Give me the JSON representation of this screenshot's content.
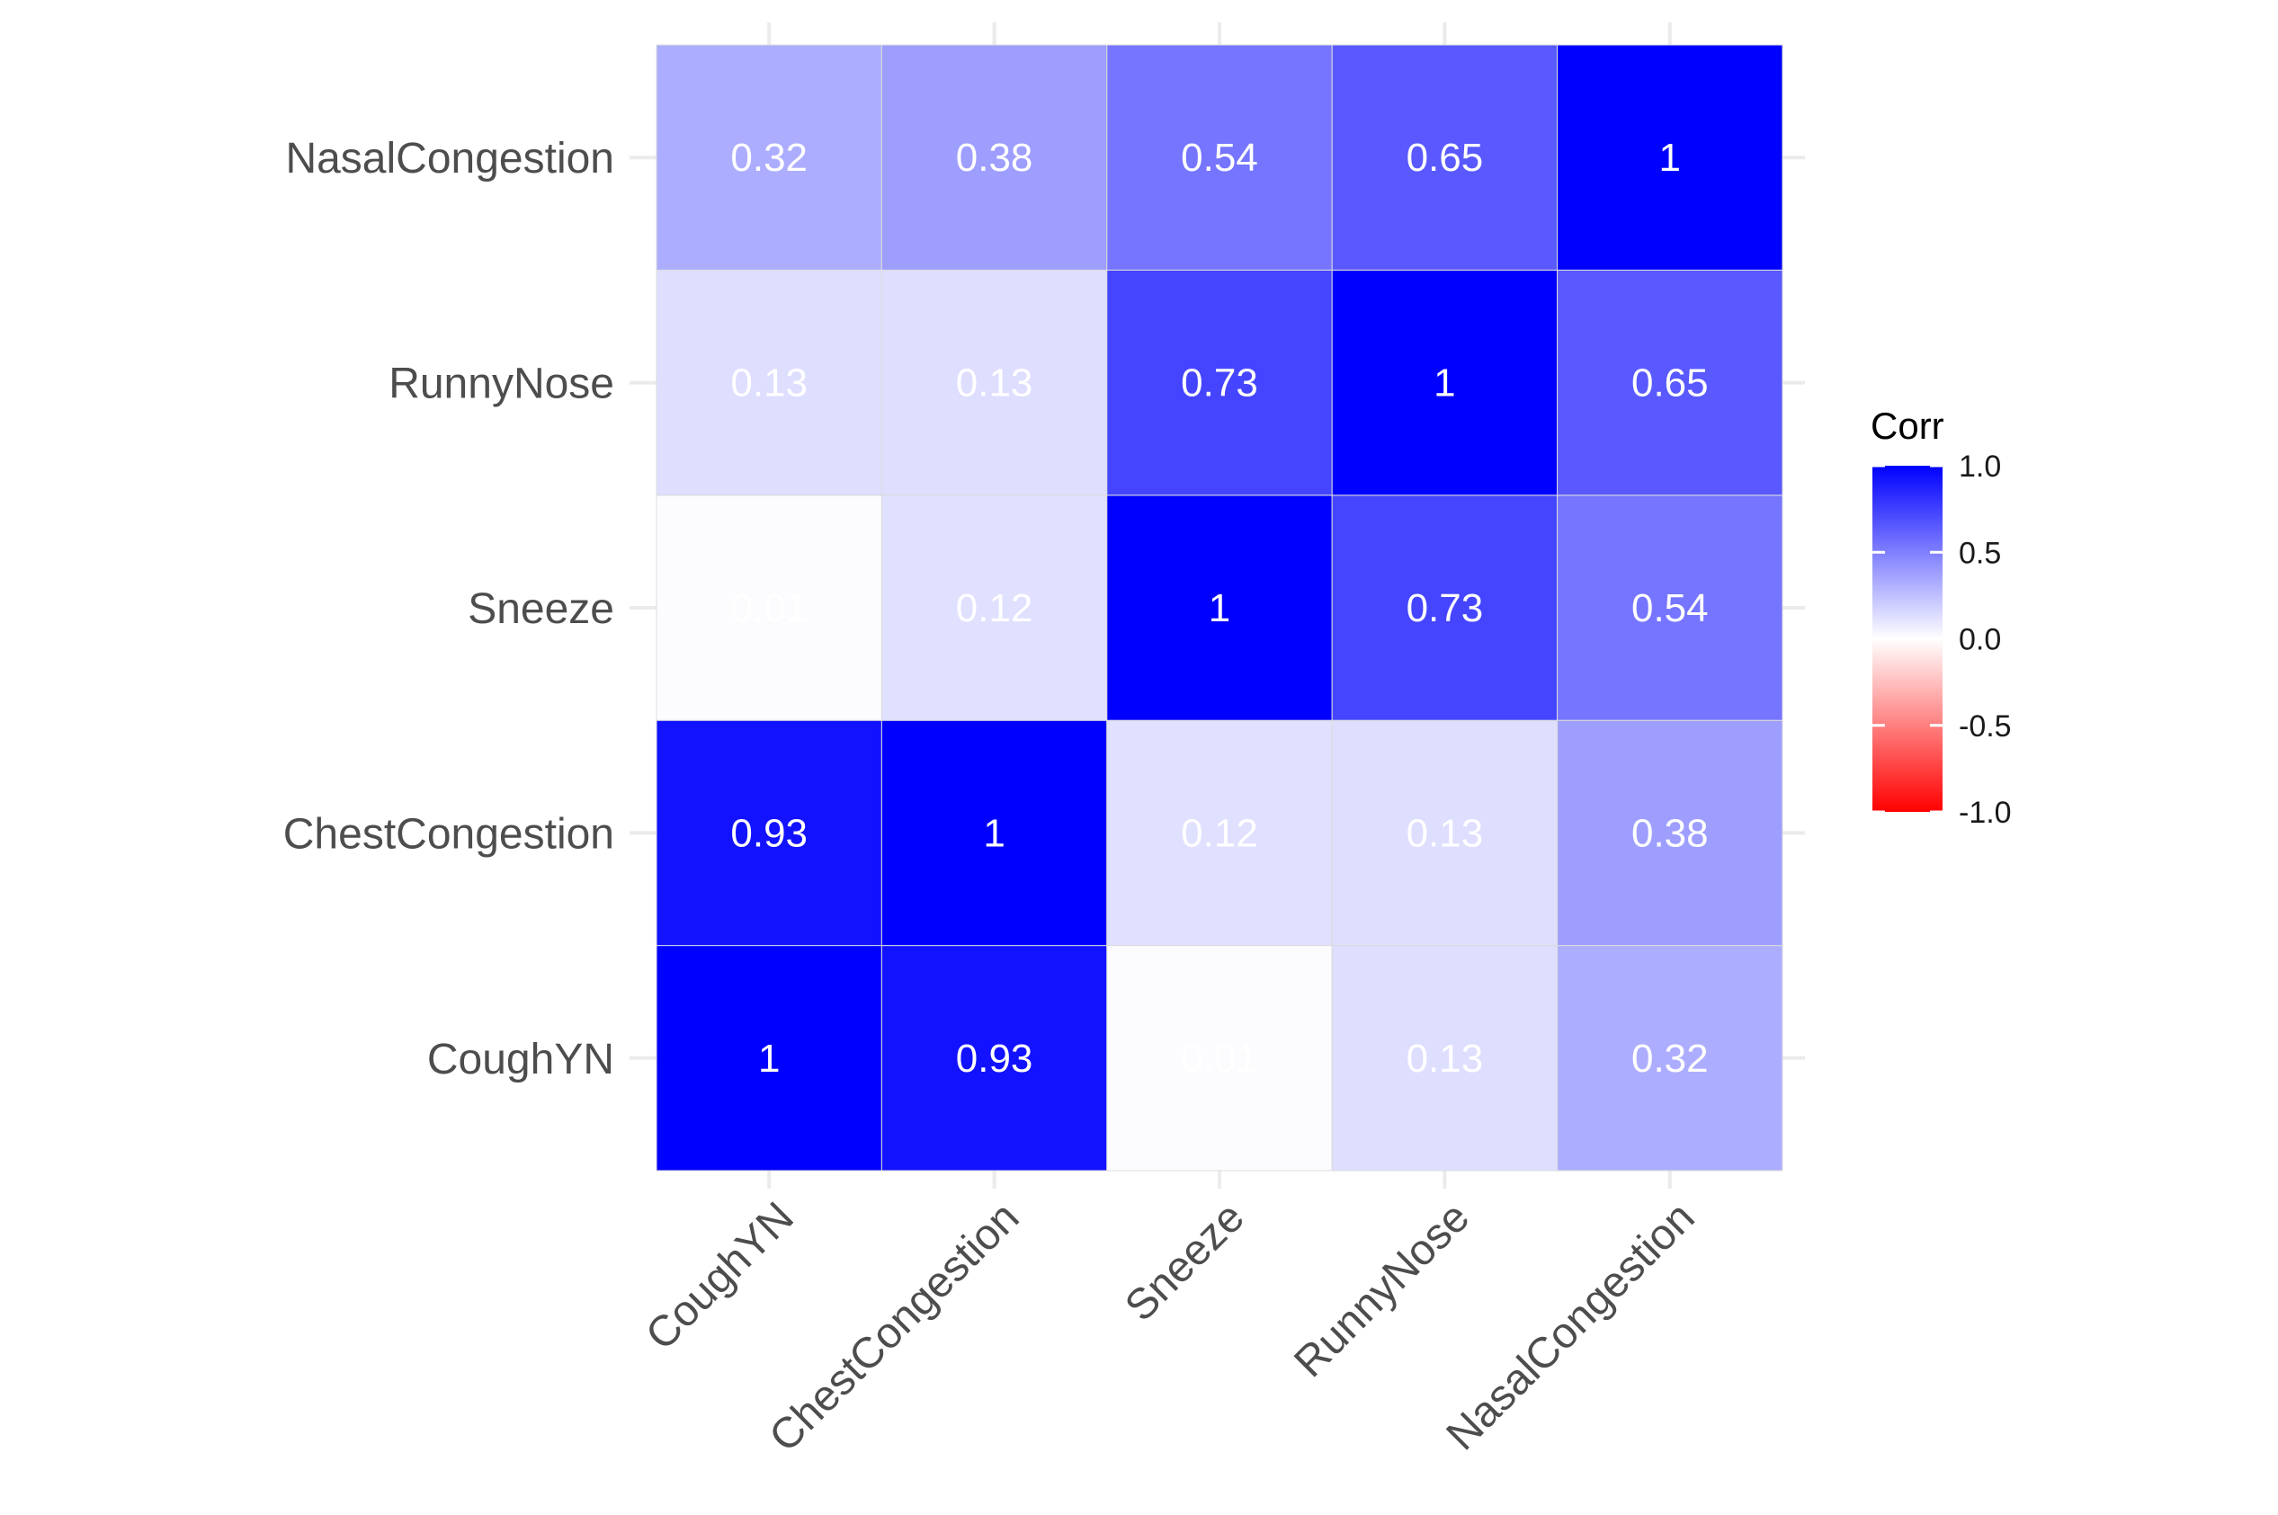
{
  "chart_data": {
    "type": "heatmap",
    "title": "",
    "xlabel": "",
    "ylabel": "",
    "x_categories": [
      "CoughYN",
      "ChestCongestion",
      "Sneeze",
      "RunnyNose",
      "NasalCongestion"
    ],
    "y_categories": [
      "CoughYN",
      "ChestCongestion",
      "Sneeze",
      "RunnyNose",
      "NasalCongestion"
    ],
    "matrix": [
      [
        1,
        0.93,
        0.01,
        0.13,
        0.32
      ],
      [
        0.93,
        1,
        0.12,
        0.13,
        0.38
      ],
      [
        0.01,
        0.12,
        1,
        0.73,
        0.54
      ],
      [
        0.13,
        0.13,
        0.73,
        1,
        0.65
      ],
      [
        0.32,
        0.38,
        0.54,
        0.65,
        1
      ]
    ],
    "cell_labels": [
      [
        "1",
        "0.93",
        "0.01",
        "0.13",
        "0.32"
      ],
      [
        "0.93",
        "1",
        "0.12",
        "0.13",
        "0.38"
      ],
      [
        "0.01",
        "0.12",
        "1",
        "0.73",
        "0.54"
      ],
      [
        "0.13",
        "0.13",
        "0.73",
        "1",
        "0.65"
      ],
      [
        "0.32",
        "0.38",
        "0.54",
        "0.65",
        "1"
      ]
    ],
    "x_tick_rotation": "45 degrees",
    "y_order": "first category at bottom",
    "legend": {
      "title": "Corr",
      "position": "right",
      "range": [
        -1,
        1
      ],
      "ticks": [
        "1.0",
        "0.5",
        "0.0",
        "-0.5",
        "-1.0"
      ],
      "tick_values": [
        1,
        0.5,
        0,
        -0.5,
        -1
      ],
      "colors": {
        "low": "#ff0000",
        "mid": "#ffffff",
        "high": "#0000ff"
      }
    },
    "grid": true,
    "colors": {
      "cell_text": "#ffffff",
      "tick_text": "#4d4d4d",
      "gridline": "#ebebeb",
      "background": "#ffffff"
    }
  }
}
